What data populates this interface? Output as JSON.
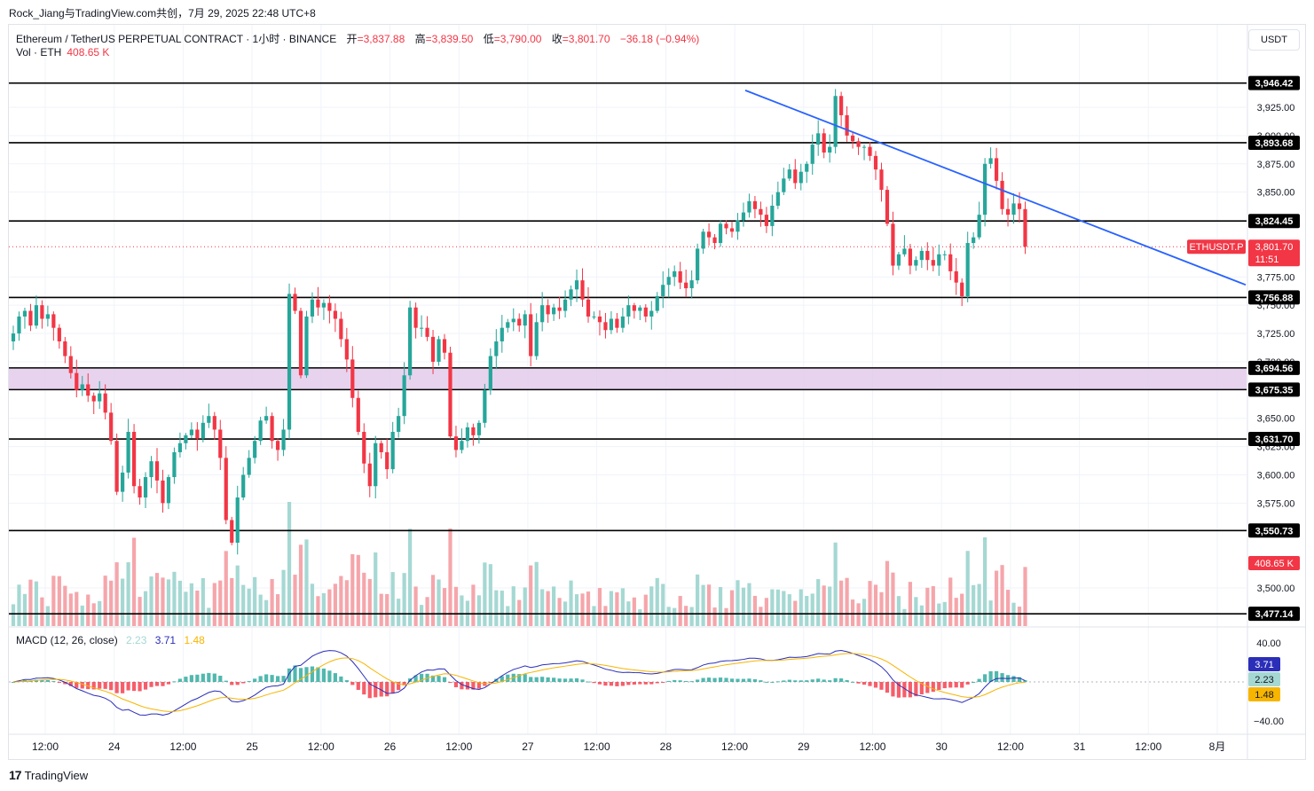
{
  "caption": "Rock_Jiang与TradingView.com共创，7月 29, 2025 22:48 UTC+8",
  "legend": {
    "symbol": "Ethereum / TetherUS PERPETUAL CONTRACT · 1小时 · BINANCE",
    "open_label": "开",
    "open": "=3,837.88",
    "high_label": "高",
    "high": "=3,839.50",
    "low_label": "低",
    "low": "=3,790.00",
    "close_label": "收",
    "close": "=3,801.70",
    "change": "−36.18 (−0.94%)"
  },
  "volume_legend": {
    "label": "Vol · ETH",
    "value": "408.65 K"
  },
  "currency": "USDT",
  "macd_legend": {
    "label": "MACD (12, 26, close)",
    "hist": "2.23",
    "macd": "3.71",
    "signal": "1.48"
  },
  "footer": {
    "logo": "17",
    "brand": "TradingView"
  },
  "colors": {
    "up": "#26a69a",
    "down": "#f23645",
    "up_vol": "#a5d8d3",
    "down_vol": "#f5a6ab",
    "trendline": "#2962ff",
    "zone": "#e1c8ea",
    "macd_line": "#2a2eb8",
    "signal_line": "#f7b500"
  },
  "chart_data": {
    "type": "candlestick",
    "timeframe": "1h",
    "y_axis_price": {
      "ticks": [
        "3,925.00",
        "3,900.00",
        "3,875.00",
        "3,850.00",
        "3,775.00",
        "3,750.00",
        "3,725.00",
        "3,700.00",
        "3,650.00",
        "3,625.00",
        "3,600.00",
        "3,575.00",
        "3,500.00"
      ],
      "tick_values": [
        3925,
        3900,
        3875,
        3850,
        3775,
        3750,
        3725,
        3700,
        3650,
        3625,
        3600,
        3575,
        3500
      ]
    },
    "horizontal_levels": [
      {
        "label": "3,946.42",
        "value": 3946.42
      },
      {
        "label": "3,893.68",
        "value": 3893.68
      },
      {
        "label": "3,824.45",
        "value": 3824.45
      },
      {
        "label": "3,756.88",
        "value": 3756.88
      },
      {
        "label": "3,694.56",
        "value": 3694.56
      },
      {
        "label": "3,675.35",
        "value": 3675.35
      },
      {
        "label": "3,631.70",
        "value": 3631.7
      },
      {
        "label": "3,550.73",
        "value": 3550.73
      },
      {
        "label": "3,477.14",
        "value": 3477.14
      }
    ],
    "zone": {
      "from": 3675.35,
      "to": 3694.56
    },
    "current_price": {
      "symbol": "ETHUSDT.P",
      "price": "3,801.70",
      "countdown": "11:51",
      "value": 3801.7
    },
    "volume_tag": "408.65 K",
    "trendline": {
      "from_price": 3940,
      "to_price": 3768
    },
    "x_labels": [
      "12:00",
      "24",
      "12:00",
      "25",
      "12:00",
      "26",
      "12:00",
      "27",
      "12:00",
      "28",
      "12:00",
      "29",
      "12:00",
      "30",
      "12:00",
      "31",
      "12:00",
      "8月"
    ],
    "macd_axis": {
      "ticks": [
        "40.00",
        "−40.00"
      ],
      "tick_values": [
        40,
        -40
      ]
    },
    "macd_tags": {
      "macd": "3.71",
      "hist": "2.23",
      "signal": "1.48"
    },
    "closes": [
      3725,
      3740,
      3745,
      3732,
      3750,
      3738,
      3742,
      3730,
      3718,
      3705,
      3690,
      3675,
      3680,
      3670,
      3665,
      3672,
      3655,
      3630,
      3585,
      3602,
      3638,
      3590,
      3580,
      3598,
      3612,
      3595,
      3575,
      3598,
      3620,
      3628,
      3635,
      3640,
      3632,
      3646,
      3652,
      3640,
      3615,
      3560,
      3540,
      3580,
      3600,
      3615,
      3630,
      3648,
      3652,
      3630,
      3622,
      3640,
      3760,
      3745,
      3688,
      3740,
      3755,
      3748,
      3752,
      3745,
      3738,
      3720,
      3702,
      3668,
      3638,
      3610,
      3590,
      3628,
      3620,
      3605,
      3638,
      3652,
      3688,
      3748,
      3730,
      3730,
      3722,
      3700,
      3720,
      3708,
      3634,
      3622,
      3630,
      3642,
      3635,
      3646,
      3675,
      3705,
      3718,
      3730,
      3735,
      3738,
      3732,
      3742,
      3705,
      3735,
      3750,
      3742,
      3748,
      3745,
      3755,
      3764,
      3772,
      3755,
      3740,
      3740,
      3735,
      3728,
      3738,
      3730,
      3740,
      3750,
      3745,
      3748,
      3740,
      3745,
      3758,
      3768,
      3775,
      3780,
      3770,
      3765,
      3772,
      3800,
      3815,
      3810,
      3805,
      3822,
      3818,
      3815,
      3825,
      3832,
      3842,
      3835,
      3830,
      3820,
      3838,
      3850,
      3862,
      3870,
      3858,
      3868,
      3875,
      3892,
      3902,
      3885,
      3890,
      3935,
      3918,
      3900,
      3895,
      3890,
      3890,
      3882,
      3870,
      3852,
      3822,
      3785,
      3795,
      3800,
      3785,
      3790,
      3798,
      3790,
      3785,
      3795,
      3795,
      3780,
      3770,
      3758,
      3805,
      3810,
      3830,
      3875,
      3880,
      3860,
      3835,
      3830,
      3840,
      3835,
      3801.7
    ],
    "macd": {
      "macd_final": 3.71,
      "signal_final": 1.48,
      "hist_final": 2.23
    }
  }
}
